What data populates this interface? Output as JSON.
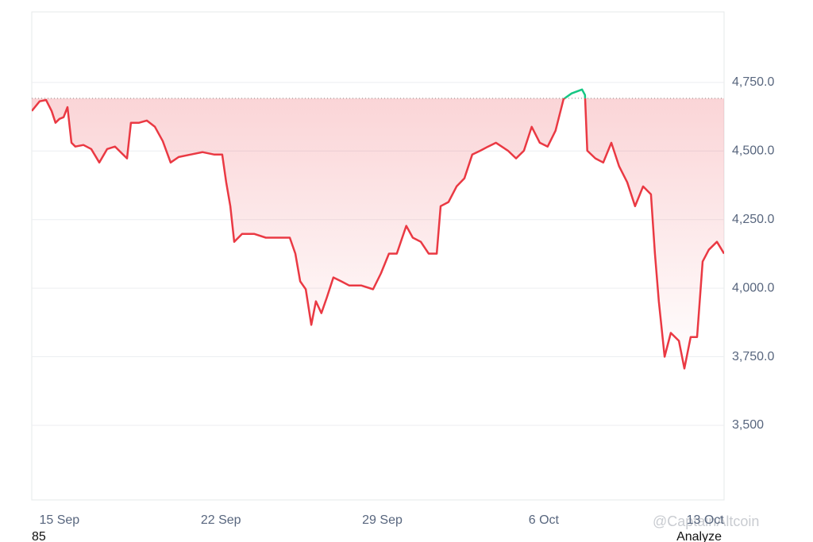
{
  "chart_data": {
    "type": "line",
    "x": [
      13.8,
      14.14,
      14.42,
      14.66,
      14.83,
      15.0,
      15.18,
      15.35,
      15.52,
      15.69,
      16.04,
      16.38,
      16.73,
      17.07,
      17.41,
      17.76,
      17.93,
      18.1,
      18.45,
      18.79,
      19.14,
      19.48,
      19.82,
      20.17,
      20.68,
      21.2,
      21.72,
      22.06,
      22.23,
      22.41,
      22.58,
      22.92,
      23.44,
      23.95,
      24.47,
      24.99,
      25.23,
      25.44,
      25.68,
      25.92,
      26.12,
      26.36,
      26.6,
      26.88,
      27.22,
      27.56,
      28.08,
      28.6,
      28.94,
      29.29,
      29.63,
      30.04,
      30.32,
      30.67,
      31.01,
      31.36,
      31.53,
      31.87,
      32.22,
      32.56,
      32.9,
      33.25,
      33.59,
      33.93,
      34.45,
      34.8,
      35.14,
      35.48,
      35.83,
      36.17,
      36.51,
      36.86,
      37.21,
      37.66,
      37.79,
      37.89,
      38.24,
      38.58,
      38.93,
      39.27,
      39.62,
      39.96,
      40.31,
      40.65,
      40.82,
      40.99,
      41.24,
      41.51,
      41.86,
      42.1,
      42.37,
      42.65,
      42.89,
      43.16,
      43.51,
      43.82
    ],
    "series": [
      {
        "color": "#ea3943",
        "values": [
          4646,
          4681,
          4686,
          4646,
          4603,
          4617,
          4623,
          4660,
          4530,
          4516,
          4522,
          4507,
          4458,
          4507,
          4516,
          4487,
          4473,
          4603,
          4603,
          4611,
          4588,
          4536,
          4458,
          4478,
          4487,
          4496,
          4487,
          4487,
          4386,
          4299,
          4169,
          4198,
          4198,
          4184,
          4184,
          4184,
          4126,
          4025,
          3996,
          3866,
          3952,
          3909,
          3967,
          4039,
          4025,
          4010,
          4010,
          3996,
          4054,
          4126,
          4126,
          4227,
          4184,
          4169,
          4126,
          4126,
          4299,
          4314,
          4371,
          4400,
          4487,
          4501,
          4516,
          4530,
          4501,
          4473,
          4501,
          4588,
          4530,
          4516,
          4574,
          4689,
          4710,
          4724,
          4704,
          4501,
          4473,
          4458,
          4530,
          4444,
          4386,
          4299,
          4371,
          4342,
          4126,
          3952,
          3750,
          3837,
          3808,
          3707,
          3822,
          3822,
          4097,
          4140,
          4169,
          4126
        ]
      }
    ],
    "baseline": 4692,
    "up_color": "#16c784",
    "xlim": [
      13.8,
      43.82
    ],
    "xticks": [
      {
        "value": 15,
        "label": "15 Sep"
      },
      {
        "value": 22,
        "label": "22 Sep"
      },
      {
        "value": 29,
        "label": "29 Sep"
      },
      {
        "value": 36,
        "label": "6 Oct"
      },
      {
        "value": 43,
        "label": "13 Oct"
      }
    ],
    "ylim": [
      3228,
      5007
    ],
    "yticks": [
      {
        "value": 3500,
        "label": "3,500"
      },
      {
        "value": 3750,
        "label": "3,750.0"
      },
      {
        "value": 4000,
        "label": "4,000.0"
      },
      {
        "value": 4250,
        "label": "4,250.0"
      },
      {
        "value": 4500,
        "label": "4,500.0"
      },
      {
        "value": 4750,
        "label": "4,750.0"
      }
    ],
    "grid": true,
    "footer_left": "85",
    "footer_right": "Analyze",
    "watermark": "@CaptainAltcoin"
  }
}
